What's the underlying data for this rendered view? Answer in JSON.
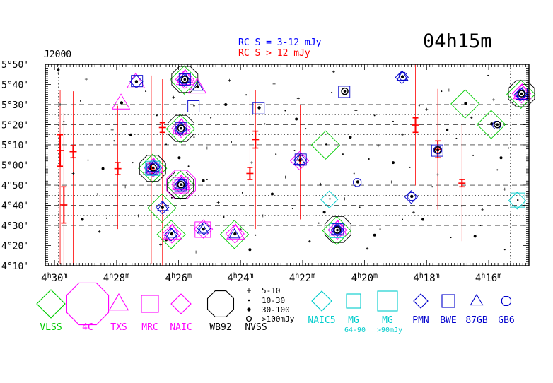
{
  "chart_data": {
    "type": "scatter",
    "title": "04h15m",
    "epoch": "J2000",
    "rc_legend": [
      {
        "label": "RC S = 3-12 mJy",
        "color": "#0000ff"
      },
      {
        "label": "RC S > 12 mJy",
        "color": "#ff0000"
      }
    ],
    "x_ticks": [
      {
        "label": "4h30m",
        "h": 4,
        "m": 30,
        "ra": 4.5
      },
      {
        "label": "4h28m",
        "h": 4,
        "m": 28,
        "ra": 4.4667
      },
      {
        "label": "4h26m",
        "h": 4,
        "m": 26,
        "ra": 4.4333
      },
      {
        "label": "4h24m",
        "h": 4,
        "m": 24,
        "ra": 4.4
      },
      {
        "label": "4h22m",
        "h": 4,
        "m": 22,
        "ra": 4.3667
      },
      {
        "label": "4h20m",
        "h": 4,
        "m": 20,
        "ra": 4.3333
      },
      {
        "label": "4h18m",
        "h": 4,
        "m": 18,
        "ra": 4.3
      },
      {
        "label": "4h16m",
        "h": 4,
        "m": 16,
        "ra": 4.2667
      }
    ],
    "y_ticks": [
      {
        "label": "5°50'",
        "dec": 5.833
      },
      {
        "label": "5°40'",
        "dec": 5.667
      },
      {
        "label": "5°30'",
        "dec": 5.5
      },
      {
        "label": "5°20'",
        "dec": 5.333
      },
      {
        "label": "5°10'",
        "dec": 5.167
      },
      {
        "label": "5°00'",
        "dec": 5.0
      },
      {
        "label": "4°50'",
        "dec": 4.833
      },
      {
        "label": "4°40'",
        "dec": 4.667
      },
      {
        "label": "4°30'",
        "dec": 4.5
      },
      {
        "label": "4°20'",
        "dec": 4.333
      },
      {
        "label": "4°10'",
        "dec": 4.167
      }
    ],
    "xlim_ra_hours": [
      4.505,
      4.245
    ],
    "ylim_dec_deg": [
      4.167,
      5.833
    ],
    "rc_strips_dec_deg": [
      5.5,
      5.417,
      5.333,
      5.25,
      5.167,
      5.083,
      5.0,
      4.917,
      4.833,
      4.75,
      4.667,
      4.583,
      4.5
    ],
    "rc_dotted_ra_hours": [
      4.498,
      4.255
    ],
    "sources": [
      {
        "ra": 4.447,
        "dec": 4.977,
        "markers": [
          "VLSS",
          "NAIC",
          "TXS",
          "MG",
          "NAIC5",
          "PMN",
          "BWE",
          "87GB",
          "GB6",
          "WB92"
        ],
        "nvss": "big"
      },
      {
        "ra": 4.432,
        "dec": 4.838,
        "markers": [
          "VLSS",
          "NAIC",
          "TXS",
          "MRC",
          "4C",
          "PMN",
          "BWE",
          "87GB",
          "GB6",
          "WB92"
        ],
        "nvss": "big"
      },
      {
        "ra": 4.432,
        "dec": 5.303,
        "markers": [
          "VLSS",
          "NAIC",
          "TXS",
          "PMN",
          "BWE",
          "87GB",
          "GB6",
          "WB92"
        ],
        "nvss": "big"
      },
      {
        "ra": 4.43,
        "dec": 5.708,
        "markers": [
          "VLSS",
          "NAIC",
          "TXS",
          "PMN",
          "BWE",
          "87GB",
          "GB6",
          "WB92"
        ],
        "nvss": "big"
      },
      {
        "ra": 4.348,
        "dec": 4.462,
        "markers": [
          "VLSS",
          "NAIC",
          "TXS",
          "MG",
          "PMN",
          "BWE",
          "87GB",
          "GB6",
          "WB92"
        ],
        "nvss": "big"
      },
      {
        "ra": 4.249,
        "dec": 5.59,
        "markers": [
          "VLSS",
          "NAIC",
          "TXS",
          "PMN",
          "BWE",
          "87GB",
          "GB6",
          "WB92"
        ],
        "nvss": "big"
      },
      {
        "ra": 4.456,
        "dec": 5.69,
        "markers": [
          "TXS",
          "PMN",
          "BWE"
        ],
        "nvss": "30-100"
      },
      {
        "ra": 4.464,
        "dec": 5.515,
        "markers": [
          "TXS"
        ],
        "nvss": "30-100"
      },
      {
        "ra": 4.442,
        "dec": 4.648,
        "markers": [
          "VLSS",
          "PMN",
          "87GB"
        ],
        "nvss": "30-100"
      },
      {
        "ra": 4.437,
        "dec": 4.43,
        "markers": [
          "VLSS",
          "NAIC",
          "TXS",
          "PMN",
          "87GB"
        ],
        "nvss": "30-100"
      },
      {
        "ra": 4.423,
        "dec": 5.647,
        "markers": [
          "TXS",
          "87GB"
        ],
        "nvss": "30-100"
      },
      {
        "ra": 4.42,
        "dec": 4.47,
        "markers": [
          "MRC",
          "NAIC",
          "PMN",
          "87GB"
        ],
        "nvss": "30-100"
      },
      {
        "ra": 4.403,
        "dec": 4.43,
        "markers": [
          "VLSS",
          "NAIC",
          "TXS",
          "87GB"
        ],
        "nvss": "30-100"
      },
      {
        "ra": 4.39,
        "dec": 5.474,
        "markers": [
          "BWE"
        ],
        "nvss": "30-100"
      },
      {
        "ra": 4.368,
        "dec": 5.04,
        "markers": [
          "NAIC",
          "PMN",
          "BWE",
          "87GB"
        ],
        "nvss": "30-100"
      },
      {
        "ra": 4.354,
        "dec": 5.17,
        "markers": [
          "VLSS"
        ],
        "nvss": "10-30"
      },
      {
        "ra": 4.352,
        "dec": 4.72,
        "markers": [
          "NAIC5"
        ],
        "nvss": "10-30"
      },
      {
        "ra": 4.344,
        "dec": 5.61,
        "markers": [
          "BWE"
        ],
        "nvss": "big"
      },
      {
        "ra": 4.337,
        "dec": 4.86,
        "markers": [
          "GB6"
        ],
        "nvss": "30-100"
      },
      {
        "ra": 4.313,
        "dec": 5.73,
        "markers": [
          "PMN",
          "87GB",
          "GB6"
        ],
        "nvss": "30-100"
      },
      {
        "ra": 4.308,
        "dec": 4.74,
        "markers": [
          "PMN",
          "GB6"
        ],
        "nvss": "30-100"
      },
      {
        "ra": 4.294,
        "dec": 5.124,
        "markers": [
          "BWE",
          "GB6"
        ],
        "nvss": "big"
      },
      {
        "ra": 4.279,
        "dec": 5.51,
        "markers": [
          "VLSS"
        ],
        "nvss": "30-100"
      },
      {
        "ra": 4.265,
        "dec": 5.34,
        "markers": [
          "VLSS"
        ],
        "nvss": "30-100"
      },
      {
        "ra": 4.262,
        "dec": 5.335,
        "markers": [
          "GB6"
        ],
        "nvss": "big"
      },
      {
        "ra": 4.251,
        "dec": 4.71,
        "markers": [
          "NAIC5",
          "MG"
        ],
        "nvss": "10-30"
      },
      {
        "ra": 4.425,
        "dec": 5.49,
        "markers": [
          "BWE"
        ],
        "nvss": "10-30"
      }
    ],
    "rc_sources": [
      {
        "ra": 4.497,
        "dec": 5.12,
        "err": 0.13,
        "range": [
          4.18,
          5.62
        ]
      },
      {
        "ra": 4.495,
        "dec": 4.67,
        "err": 0.15,
        "range": [
          4.17,
          5.43
        ]
      },
      {
        "ra": 4.49,
        "dec": 5.11,
        "err": 0.05,
        "range": [
          4.17,
          5.61
        ]
      },
      {
        "ra": 4.466,
        "dec": 4.97,
        "err": 0.05,
        "range": [
          4.47,
          5.49
        ]
      },
      {
        "ra": 4.448,
        "dec": 4.97,
        "err": 0.04,
        "range": [
          4.18,
          5.74
        ]
      },
      {
        "ra": 4.442,
        "dec": 5.31,
        "err": 0.04,
        "range": [
          4.17,
          5.71
        ]
      },
      {
        "ra": 4.392,
        "dec": 5.21,
        "err": 0.07,
        "range": [
          4.47,
          5.62
        ]
      },
      {
        "ra": 4.395,
        "dec": 4.93,
        "err": 0.05,
        "range": [
          4.62,
          5.62
        ]
      },
      {
        "ra": 4.368,
        "dec": 5.04,
        "err": 0.04,
        "range": [
          4.55,
          5.5
        ]
      },
      {
        "ra": 4.306,
        "dec": 5.33,
        "err": 0.06,
        "range": [
          4.83,
          5.83
        ]
      },
      {
        "ra": 4.294,
        "dec": 5.13,
        "err": 0.07,
        "range": [
          4.63,
          5.63
        ]
      },
      {
        "ra": 4.281,
        "dec": 4.85,
        "err": 0.03,
        "range": [
          4.37,
          5.33
        ]
      }
    ],
    "nvss_small": [
      [
        4.498,
        5.76
      ],
      [
        4.495,
        5.36
      ],
      [
        4.486,
        5.53
      ],
      [
        4.482,
        5.04
      ],
      [
        4.477,
        4.76
      ],
      [
        4.472,
        4.56
      ],
      [
        4.468,
        5.2
      ],
      [
        4.458,
        5.02
      ],
      [
        4.452,
        4.92
      ],
      [
        4.451,
        5.61
      ],
      [
        4.445,
        5.41
      ],
      [
        4.44,
        5.17
      ],
      [
        4.437,
        4.73
      ],
      [
        4.428,
        4.99
      ],
      [
        4.425,
        5.23
      ],
      [
        4.418,
        4.88
      ],
      [
        4.416,
        5.39
      ],
      [
        4.409,
        4.57
      ],
      [
        4.405,
        5.19
      ],
      [
        4.399,
        4.77
      ],
      [
        4.397,
        5.58
      ],
      [
        4.392,
        4.42
      ],
      [
        4.387,
        5.34
      ],
      [
        4.381,
        5.09
      ],
      [
        4.376,
        5.45
      ],
      [
        4.372,
        4.64
      ],
      [
        4.371,
        5.12
      ],
      [
        4.365,
        5.3
      ],
      [
        4.358,
        4.52
      ],
      [
        4.351,
        5.6
      ],
      [
        4.345,
        5.09
      ],
      [
        4.339,
        4.93
      ],
      [
        4.336,
        4.65
      ],
      [
        4.331,
        5.05
      ],
      [
        4.328,
        5.41
      ],
      [
        4.325,
        4.47
      ],
      [
        4.318,
        5.36
      ],
      [
        4.313,
        4.55
      ],
      [
        4.309,
        4.98
      ],
      [
        4.304,
        5.49
      ],
      [
        4.297,
        4.82
      ],
      [
        4.292,
        5.61
      ],
      [
        4.287,
        4.4
      ],
      [
        4.284,
        5.22
      ],
      [
        4.281,
        4.66
      ],
      [
        4.275,
        5.08
      ],
      [
        4.271,
        4.5
      ],
      [
        4.267,
        5.74
      ],
      [
        4.262,
        4.96
      ],
      [
        4.258,
        4.3
      ],
      [
        4.256,
        5.14
      ]
    ],
    "nvss_med": [
      [
        4.498,
        5.79
      ],
      [
        4.485,
        4.55
      ],
      [
        4.474,
        4.97
      ],
      [
        4.459,
        5.25
      ],
      [
        4.44,
        4.38
      ],
      [
        4.433,
        5.06
      ],
      [
        4.42,
        4.87
      ],
      [
        4.408,
        5.5
      ],
      [
        4.395,
        4.3
      ],
      [
        4.383,
        4.76
      ],
      [
        4.37,
        5.38
      ],
      [
        4.355,
        4.61
      ],
      [
        4.341,
        5.23
      ],
      [
        4.328,
        4.42
      ],
      [
        4.318,
        5.02
      ],
      [
        4.302,
        4.55
      ],
      [
        4.289,
        5.29
      ],
      [
        4.274,
        4.41
      ],
      [
        4.26,
        5.06
      ]
    ],
    "nvss_plus": [
      [
        4.497,
        5.5
      ],
      [
        4.49,
        4.93
      ],
      [
        4.483,
        5.71
      ],
      [
        4.476,
        4.45
      ],
      [
        4.469,
        5.29
      ],
      [
        4.462,
        4.82
      ],
      [
        4.455,
        4.58
      ],
      [
        4.448,
        5.82
      ],
      [
        4.443,
        4.34
      ],
      [
        4.436,
        5.56
      ],
      [
        4.43,
        4.75
      ],
      [
        4.424,
        4.28
      ],
      [
        4.418,
        5.14
      ],
      [
        4.412,
        4.69
      ],
      [
        4.406,
        5.7
      ],
      [
        4.4,
        4.47
      ],
      [
        4.394,
        5.02
      ],
      [
        4.388,
        4.58
      ],
      [
        4.382,
        5.67
      ],
      [
        4.376,
        4.9
      ],
      [
        4.369,
        5.55
      ],
      [
        4.363,
        4.37
      ],
      [
        4.357,
        4.84
      ],
      [
        4.35,
        5.77
      ],
      [
        4.344,
        4.72
      ],
      [
        4.338,
        5.45
      ],
      [
        4.332,
        4.31
      ],
      [
        4.326,
        5.16
      ],
      [
        4.319,
        4.86
      ],
      [
        4.313,
        5.25
      ],
      [
        4.307,
        4.61
      ],
      [
        4.3,
        5.46
      ],
      [
        4.294,
        4.92
      ],
      [
        4.288,
        5.62
      ],
      [
        4.282,
        4.52
      ],
      [
        4.276,
        5.39
      ],
      [
        4.27,
        4.63
      ],
      [
        4.264,
        5.54
      ],
      [
        4.258,
        4.8
      ]
    ],
    "legend": {
      "radio": [
        {
          "label": "VLSS",
          "color": "#00cc00",
          "shape": "diamond",
          "size": 20
        },
        {
          "label": "4C",
          "color": "#ff00ff",
          "shape": "octagon",
          "size": 32
        },
        {
          "label": "TXS",
          "color": "#ff00ff",
          "shape": "triangle",
          "size": 14
        },
        {
          "label": "MRC",
          "color": "#ff00ff",
          "shape": "square",
          "size": 12
        },
        {
          "label": "NAIC",
          "color": "#ff00ff",
          "shape": "diamond",
          "size": 14
        },
        {
          "label": "WB92",
          "color": "#000000",
          "shape": "octagon",
          "size": 20
        }
      ],
      "nvss": {
        "label": "NVSS",
        "entries": [
          {
            "label": "5-10",
            "symbol": "plus"
          },
          {
            "label": "10-30",
            "symbol": "dot-small"
          },
          {
            "label": "30-100",
            "symbol": "dot-large"
          },
          {
            "label": ">100mJy",
            "symbol": "circle-open"
          }
        ]
      },
      "right": [
        {
          "label": "NAIC5",
          "color": "#00cccc",
          "shape": "diamond",
          "size": 14
        },
        {
          "label": "MG",
          "color": "#00cccc",
          "shape": "square",
          "size": 10
        },
        {
          "label": "MG",
          "color": "#00cccc",
          "shape": "square",
          "size": 14
        },
        {
          "label": "PMN",
          "color": "#0000cc",
          "shape": "diamond",
          "size": 10
        },
        {
          "label": "BWE",
          "color": "#0000cc",
          "shape": "square",
          "size": 9
        },
        {
          "label": "87GB",
          "color": "#0000cc",
          "shape": "triangle",
          "size": 9
        },
        {
          "label": "GB6",
          "color": "#0000cc",
          "shape": "octagon",
          "size": 7
        }
      ],
      "mg_sublabels": [
        "64-90",
        ">90mJy"
      ]
    },
    "colors": {
      "axis": "#000000",
      "rc_strong": "#ff0000",
      "rc_weak": "#0000ff",
      "mg_sub": "#00cccc"
    }
  }
}
